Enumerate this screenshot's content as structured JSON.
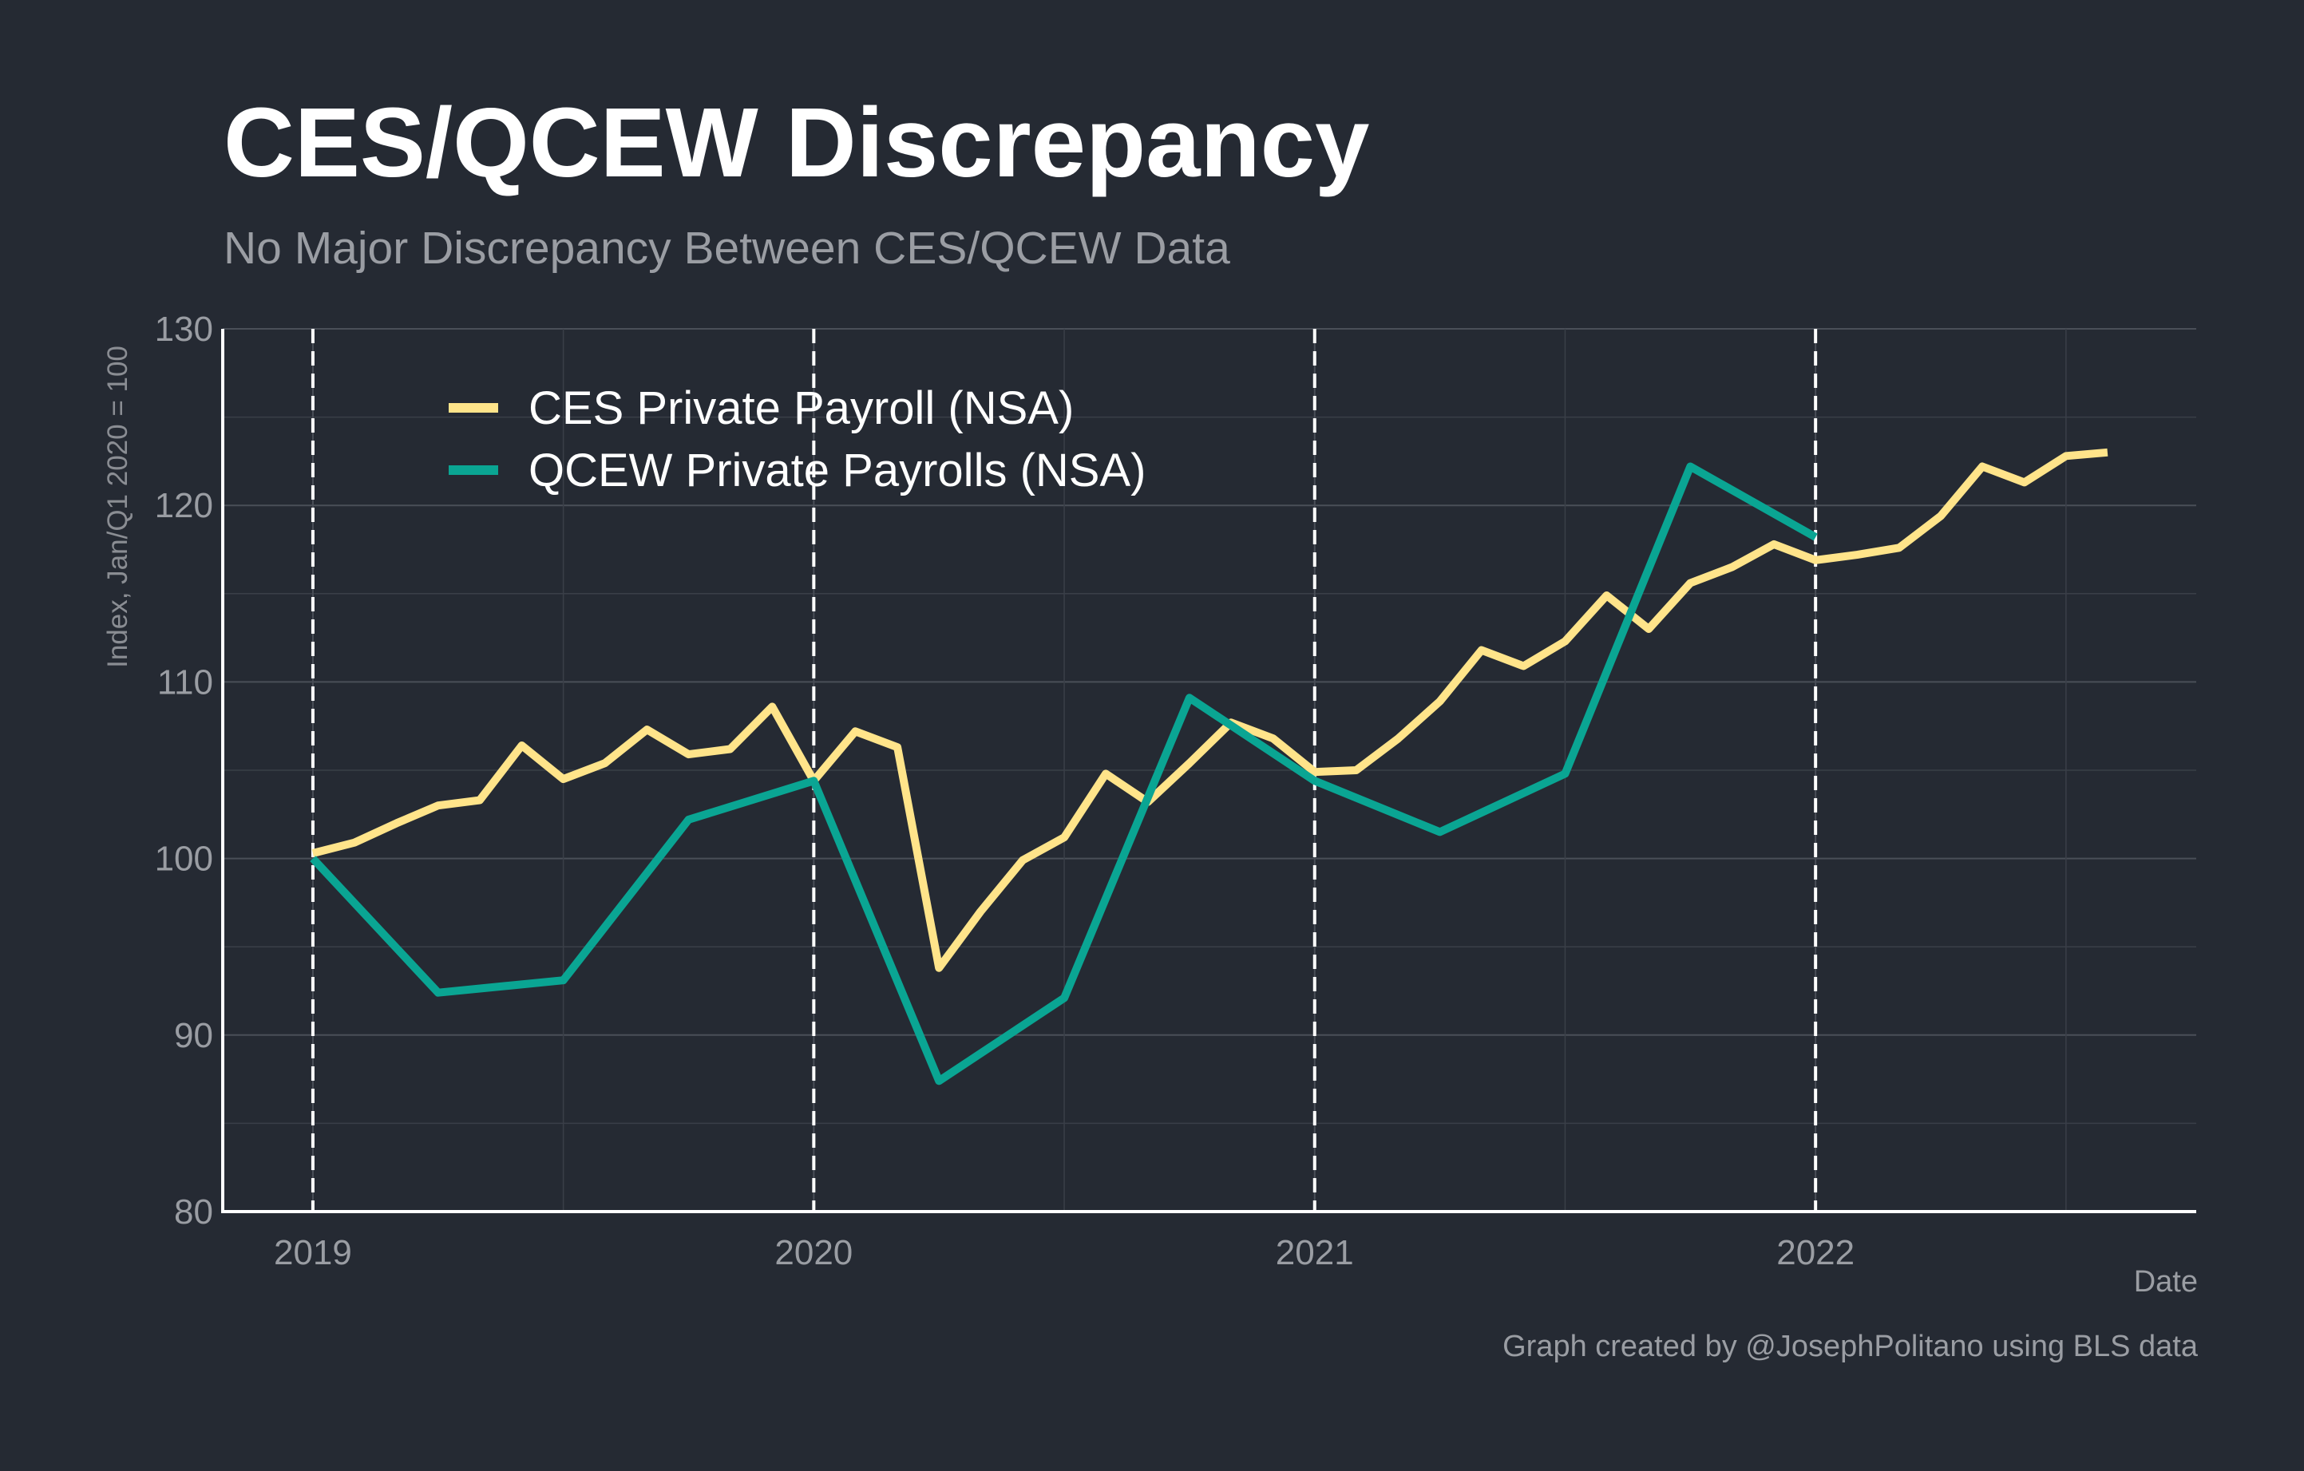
{
  "chart_data": {
    "type": "line",
    "title": "CES/QCEW Discrepancy",
    "subtitle": "No Major Discrepancy Between CES/QCEW Data",
    "xlabel": "Date",
    "ylabel": "Index, Jan/Q1 2020 = 100",
    "caption": "Graph created by @JosephPolitano using BLS data",
    "ylim": [
      80,
      130
    ],
    "yticks": [
      80,
      90,
      100,
      110,
      120,
      130
    ],
    "xlim": [
      2018.82,
      2022.76
    ],
    "xticks": [
      2019,
      2020,
      2021,
      2022
    ],
    "xtick_labels": [
      "2019",
      "2020",
      "2021",
      "2022"
    ],
    "vertical_dashed_lines": [
      2019,
      2020,
      2021,
      2022
    ],
    "grid": true,
    "legend_position": "top-left",
    "colors": {
      "background": "#252a33",
      "ces": "#ffe48a",
      "qcew": "#0aa593"
    },
    "series": [
      {
        "name": "CES Private Payroll (NSA)",
        "x": [
          2019.0,
          2019.083,
          2019.167,
          2019.25,
          2019.333,
          2019.417,
          2019.5,
          2019.583,
          2019.667,
          2019.75,
          2019.833,
          2019.917,
          2020.0,
          2020.083,
          2020.167,
          2020.25,
          2020.333,
          2020.417,
          2020.5,
          2020.583,
          2020.667,
          2020.75,
          2020.833,
          2020.917,
          2021.0,
          2021.083,
          2021.167,
          2021.25,
          2021.333,
          2021.417,
          2021.5,
          2021.583,
          2021.667,
          2021.75,
          2021.833,
          2021.917,
          2022.0,
          2022.083,
          2022.167,
          2022.25,
          2022.333,
          2022.417,
          2022.5,
          2022.583
        ],
        "values": [
          100.3,
          100.9,
          102.0,
          103.0,
          103.3,
          106.4,
          104.5,
          105.4,
          107.3,
          105.9,
          106.2,
          108.6,
          104.4,
          107.2,
          106.3,
          93.8,
          97.0,
          99.9,
          101.2,
          104.8,
          103.2,
          105.4,
          107.7,
          106.8,
          104.9,
          105.0,
          106.8,
          108.9,
          111.8,
          110.9,
          112.3,
          114.9,
          113.0,
          115.6,
          116.5,
          117.8,
          116.9,
          117.2,
          117.6,
          119.4,
          122.2,
          121.3,
          122.8,
          123.0
        ]
      },
      {
        "name": "QCEW Private Payrolls (NSA)",
        "x": [
          2019.0,
          2019.25,
          2019.5,
          2019.75,
          2020.0,
          2020.25,
          2020.5,
          2020.75,
          2021.0,
          2021.25,
          2021.5,
          2021.75,
          2022.0
        ],
        "values": [
          100.0,
          92.4,
          93.1,
          102.2,
          104.4,
          87.4,
          92.1,
          109.1,
          104.4,
          101.5,
          104.8,
          122.2,
          118.2
        ]
      }
    ]
  }
}
